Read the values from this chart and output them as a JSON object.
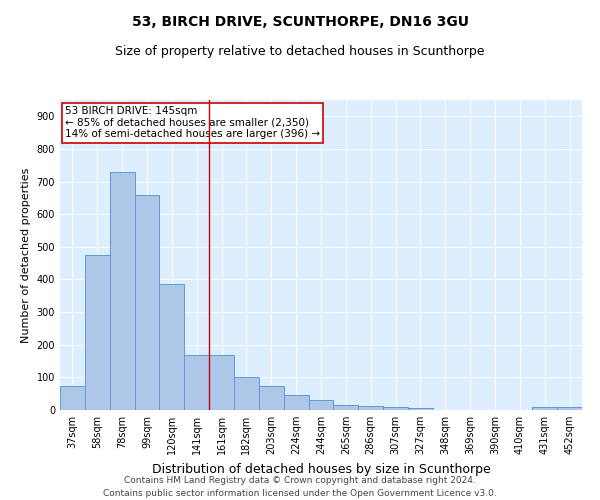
{
  "title1": "53, BIRCH DRIVE, SCUNTHORPE, DN16 3GU",
  "title2": "Size of property relative to detached houses in Scunthorpe",
  "xlabel": "Distribution of detached houses by size in Scunthorpe",
  "ylabel": "Number of detached properties",
  "categories": [
    "37sqm",
    "58sqm",
    "78sqm",
    "99sqm",
    "120sqm",
    "141sqm",
    "161sqm",
    "182sqm",
    "203sqm",
    "224sqm",
    "244sqm",
    "265sqm",
    "286sqm",
    "307sqm",
    "327sqm",
    "348sqm",
    "369sqm",
    "390sqm",
    "410sqm",
    "431sqm",
    "452sqm"
  ],
  "values": [
    75,
    475,
    730,
    660,
    385,
    170,
    170,
    100,
    75,
    45,
    30,
    15,
    12,
    10,
    5,
    0,
    0,
    0,
    0,
    8,
    8
  ],
  "bar_color": "#aec6e8",
  "bar_edge_color": "#5b9bd5",
  "vline_x": 5.5,
  "vline_color": "#cc0000",
  "annotation_lines": [
    "53 BIRCH DRIVE: 145sqm",
    "← 85% of detached houses are smaller (2,350)",
    "14% of semi-detached houses are larger (396) →"
  ],
  "annotation_box_color": "#ffffff",
  "annotation_box_edge": "#cc0000",
  "ylim": [
    0,
    950
  ],
  "yticks": [
    0,
    100,
    200,
    300,
    400,
    500,
    600,
    700,
    800,
    900
  ],
  "footer1": "Contains HM Land Registry data © Crown copyright and database right 2024.",
  "footer2": "Contains public sector information licensed under the Open Government Licence v3.0.",
  "bg_color": "#ddeeff",
  "grid_color": "#ffffff",
  "title1_fontsize": 10,
  "title2_fontsize": 9,
  "xlabel_fontsize": 9,
  "ylabel_fontsize": 8,
  "tick_fontsize": 7,
  "annotation_fontsize": 7.5,
  "footer_fontsize": 6.5
}
